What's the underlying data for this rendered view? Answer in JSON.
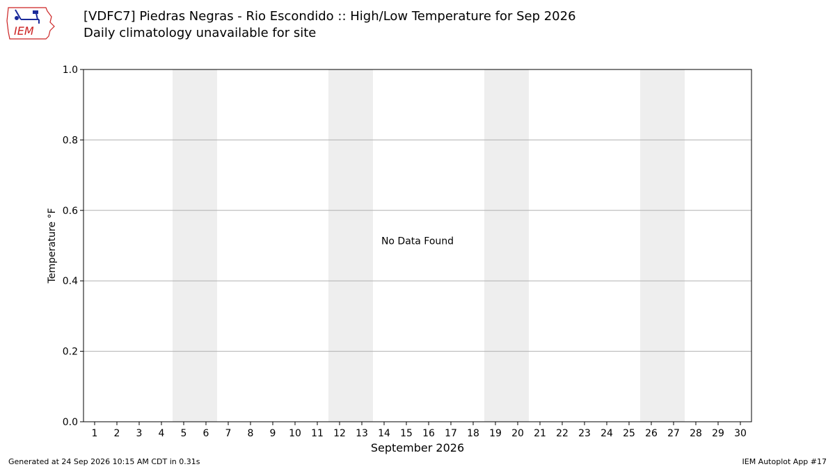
{
  "header": {
    "title": "[VDFC7] Piedras Negras - Rio Escondido :: High/Low Temperature for Sep 2026",
    "subtitle": "Daily climatology unavailable for site",
    "logo_text": "IEM"
  },
  "footer": {
    "generated": "Generated at 24 Sep 2026 10:15 AM CDT in 0.31s",
    "app": "IEM Autoplot App #17"
  },
  "chart_data": {
    "type": "bar",
    "xlabel": "September 2026",
    "ylabel": "Temperature °F",
    "categories": [
      "1",
      "2",
      "3",
      "4",
      "5",
      "6",
      "7",
      "8",
      "9",
      "10",
      "11",
      "12",
      "13",
      "14",
      "15",
      "16",
      "17",
      "18",
      "19",
      "20",
      "21",
      "22",
      "23",
      "24",
      "25",
      "26",
      "27",
      "28",
      "29",
      "30"
    ],
    "series": [],
    "ylim": [
      0.0,
      1.0
    ],
    "yticks": [
      "0.0",
      "0.2",
      "0.4",
      "0.6",
      "0.8",
      "1.0"
    ],
    "grid": "horizontal",
    "weekend_days": [
      5,
      6,
      12,
      13,
      19,
      20,
      26,
      27
    ],
    "annotation": "No Data Found",
    "colors": {
      "weekend_band": "#eeeeee",
      "grid": "#b0b0b0",
      "logo_red": "#cc2222",
      "logo_blue": "#1a2a9a"
    }
  }
}
